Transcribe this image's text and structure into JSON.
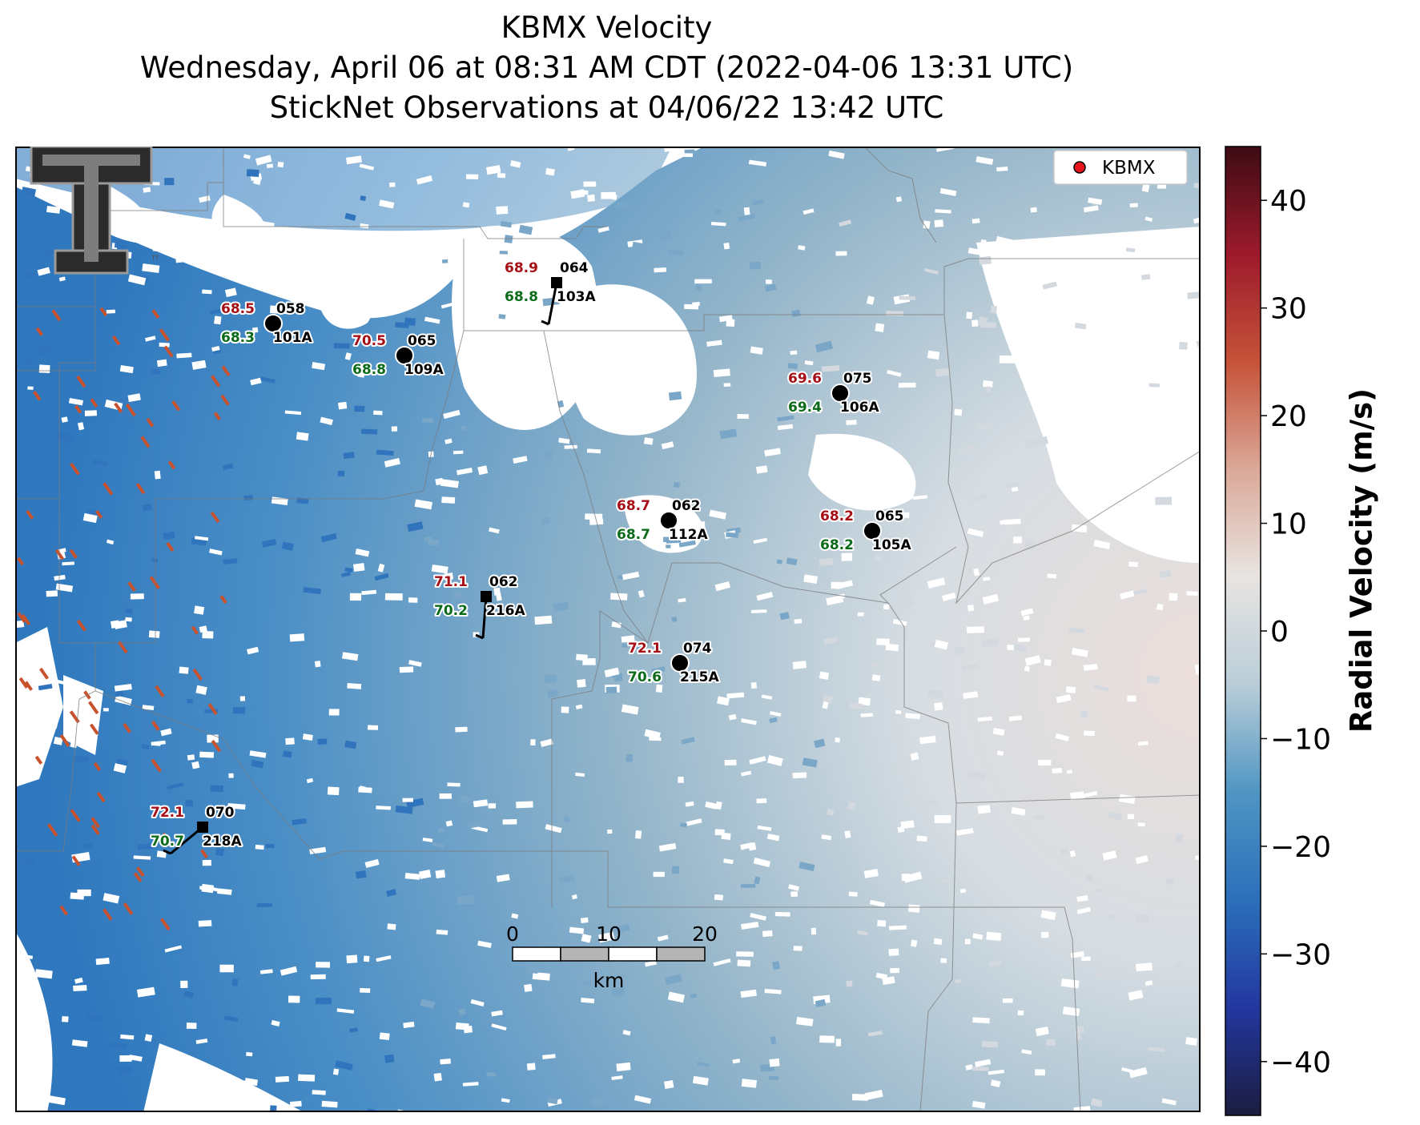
{
  "title": {
    "line1": "KBMX Velocity",
    "line2": "Wednesday, April 06 at 08:31 AM CDT (2022-04-06 13:31 UTC)",
    "line3": "StickNet Observations at 04/06/22 13:42 UTC"
  },
  "legend": {
    "label": "KBMX",
    "marker_color": "#e8141c"
  },
  "colorbar": {
    "label": "Radial Velocity (m/s)",
    "range": [
      -45,
      45
    ],
    "ticks": [
      "40",
      "30",
      "20",
      "10",
      "0",
      "−10",
      "−20",
      "−30",
      "−40"
    ],
    "colors": [
      "#1b1d3f",
      "#2337a0",
      "#2b6fba",
      "#4f95c3",
      "#b9cdd8",
      "#e8e4e1",
      "#dba898",
      "#c65238",
      "#9c1a2c",
      "#3e0b14"
    ]
  },
  "scale_bar": {
    "labels": [
      "0",
      "10",
      "20"
    ],
    "unit": "km"
  },
  "logo": {
    "text": "TT"
  },
  "stations": [
    {
      "id": "101A",
      "temp": "68.5",
      "dew": "68.3",
      "dir": "058",
      "marker": "circle"
    },
    {
      "id": "109A",
      "temp": "70.5",
      "dew": "68.8",
      "dir": "065",
      "marker": "circle"
    },
    {
      "id": "103A",
      "temp": "68.9",
      "dew": "68.8",
      "dir": "064",
      "marker": "square"
    },
    {
      "id": "106A",
      "temp": "69.6",
      "dew": "69.4",
      "dir": "075",
      "marker": "circle"
    },
    {
      "id": "112A",
      "temp": "68.7",
      "dew": "68.7",
      "dir": "062",
      "marker": "circle"
    },
    {
      "id": "105A",
      "temp": "68.2",
      "dew": "68.2",
      "dir": "065",
      "marker": "circle"
    },
    {
      "id": "216A",
      "temp": "71.1",
      "dew": "70.2",
      "dir": "062",
      "marker": "square"
    },
    {
      "id": "215A",
      "temp": "72.1",
      "dew": "70.6",
      "dir": "074",
      "marker": "circle"
    },
    {
      "id": "218A",
      "temp": "72.1",
      "dew": "70.7",
      "dir": "070",
      "marker": "square"
    }
  ],
  "colors": {
    "temp": "#a50f15",
    "dew": "#0b6b1a",
    "id": "#000000"
  }
}
